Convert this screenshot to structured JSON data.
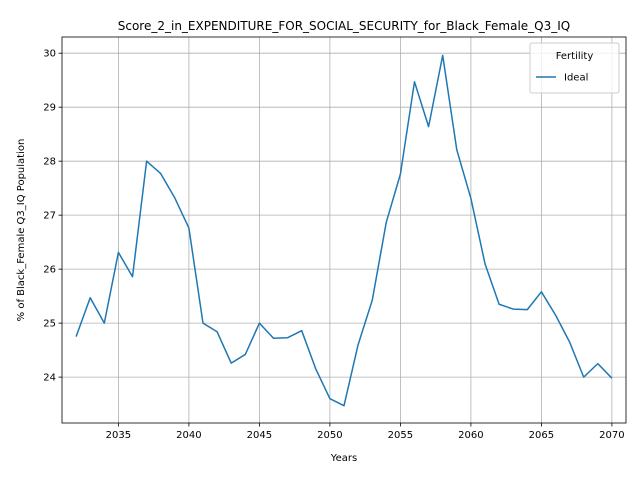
{
  "chart_data": {
    "type": "line",
    "title": "Score_2_in_EXPENDITURE_FOR_SOCIAL_SECURITY_for_Black_Female_Q3_IQ",
    "xlabel": "Years",
    "ylabel": "% of Black_Female Q3_IQ Population",
    "xlim": [
      2031,
      2071
    ],
    "ylim": [
      23.15,
      30.3
    ],
    "x_ticks": [
      2035,
      2040,
      2045,
      2050,
      2055,
      2060,
      2065,
      2070
    ],
    "y_ticks": [
      24,
      25,
      26,
      27,
      28,
      29,
      30
    ],
    "grid": true,
    "legend": {
      "title": "Fertility",
      "placement": "top-right"
    },
    "x": [
      2032,
      2033,
      2034,
      2035,
      2036,
      2037,
      2038,
      2039,
      2040,
      2041,
      2042,
      2043,
      2044,
      2045,
      2046,
      2047,
      2048,
      2049,
      2050,
      2051,
      2052,
      2053,
      2054,
      2055,
      2056,
      2057,
      2058,
      2059,
      2060,
      2061,
      2062,
      2063,
      2064,
      2065,
      2066,
      2067,
      2068,
      2069,
      2070
    ],
    "series": [
      {
        "name": "Ideal",
        "color": "#1f77b4",
        "values": [
          24.75,
          25.47,
          25.0,
          26.31,
          25.86,
          28.0,
          27.77,
          27.32,
          26.76,
          25.0,
          24.84,
          24.26,
          24.42,
          25.0,
          24.72,
          24.73,
          24.86,
          24.15,
          23.6,
          23.47,
          24.6,
          25.42,
          26.87,
          27.76,
          29.47,
          28.64,
          29.96,
          28.21,
          27.31,
          26.1,
          25.35,
          25.26,
          25.25,
          25.58,
          25.15,
          24.65,
          24.0,
          24.25,
          23.98
        ]
      }
    ]
  }
}
